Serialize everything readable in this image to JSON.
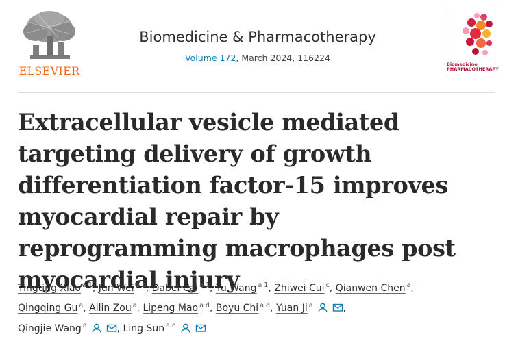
{
  "header": {
    "publisher_logo_text": "ELSEVIER",
    "journal_title": "Biomedicine & Pharmacotherapy",
    "volume_link": "Volume 172",
    "issue_info": ", March 2024, 116224",
    "cover_title": "Biomedicine",
    "cover_subtitle": "PHARMACOTHERAPY"
  },
  "article": {
    "title": "Extracellular vesicle mediated targeting delivery of growth differentiation factor-15 improves myocardial repair by reprogramming macrophages post myocardial injury"
  },
  "authors": [
    {
      "name": "Tingting Xiao",
      "aff": "a 1"
    },
    {
      "name": "Jun Wei",
      "aff": "b 1"
    },
    {
      "name": "Dabei Cai",
      "aff": "a 1"
    },
    {
      "name": "Yu Wang",
      "aff": "a 1"
    },
    {
      "name": "Zhiwei Cui",
      "aff": "c"
    },
    {
      "name": "Qianwen Chen",
      "aff": "a"
    },
    {
      "name": "Qingqing Gu",
      "aff": "a"
    },
    {
      "name": "Ailin Zou",
      "aff": "a"
    },
    {
      "name": "Lipeng Mao",
      "aff": "a d"
    },
    {
      "name": "Boyu Chi",
      "aff": "a d"
    },
    {
      "name": "Yuan Ji",
      "aff": "a"
    },
    {
      "name": "Qingjie Wang",
      "aff": "a"
    },
    {
      "name": "Ling Sun",
      "aff": "a d"
    }
  ],
  "colors": {
    "link": "#0c7dbb",
    "elsevier_orange": "#f26a1b",
    "cover_red": "#b2123a"
  }
}
